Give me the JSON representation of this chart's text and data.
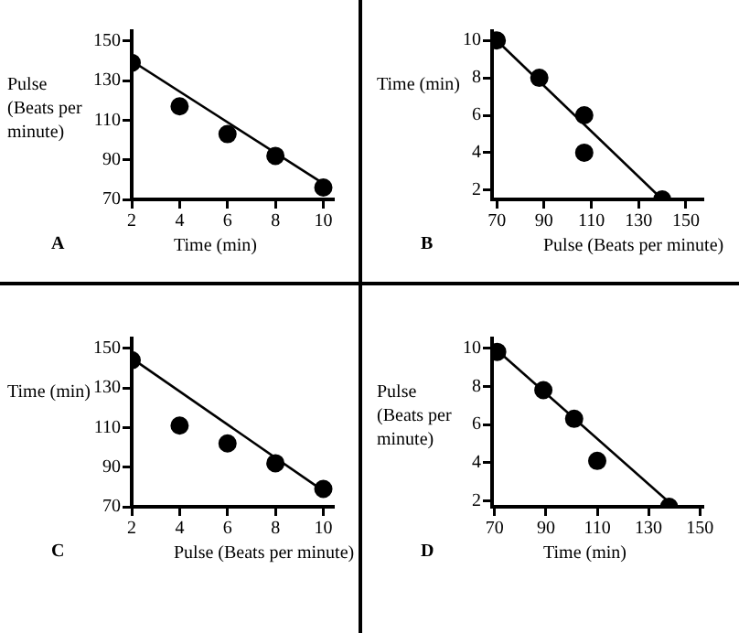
{
  "chart_data": [
    {
      "type": "scatter",
      "xlabel": "Time (min)",
      "ylabel": "Pulse (Beats per minute)",
      "annotations": [
        "A"
      ],
      "xlim": [
        2,
        10.4
      ],
      "ylim": [
        70,
        155
      ],
      "xticks": [
        2,
        4,
        6,
        8,
        10
      ],
      "yticks": [
        70,
        90,
        110,
        130,
        150
      ],
      "grid": false,
      "legend": false,
      "marker": "circle",
      "series": [
        {
          "color": "#000000",
          "x": [
            2,
            4,
            6,
            8,
            10
          ],
          "values": [
            139,
            117,
            103,
            92,
            76
          ]
        },
        {
          "type": "line",
          "marker": "none",
          "color": "#000000",
          "x": [
            2,
            10
          ],
          "values": [
            140,
            78
          ]
        }
      ]
    },
    {
      "type": "scatter",
      "xlabel": "Pulse (Beats per minute)",
      "ylabel": "Time (min)",
      "annotations": [
        "B"
      ],
      "xlim": [
        68,
        157
      ],
      "ylim": [
        1.5,
        10.5
      ],
      "xticks": [
        70,
        90,
        110,
        130,
        150
      ],
      "yticks": [
        2,
        4,
        6,
        8,
        10
      ],
      "grid": false,
      "legend": false,
      "marker": "circle",
      "series": [
        {
          "color": "#000000",
          "x": [
            70,
            88,
            107,
            107,
            140
          ],
          "values": [
            10,
            8,
            6,
            4,
            1.5
          ]
        },
        {
          "type": "line",
          "marker": "none",
          "color": "#000000",
          "x": [
            70,
            140
          ],
          "values": [
            10,
            1.5
          ]
        }
      ]
    },
    {
      "type": "scatter",
      "xlabel": "Pulse (Beats per minute)",
      "ylabel": "Time (min)",
      "annotations": [
        "C"
      ],
      "xlim": [
        2,
        10.4
      ],
      "ylim": [
        70,
        155
      ],
      "xticks": [
        2,
        4,
        6,
        8,
        10
      ],
      "yticks": [
        70,
        90,
        110,
        130,
        150
      ],
      "grid": false,
      "legend": false,
      "marker": "circle",
      "series": [
        {
          "color": "#000000",
          "x": [
            2,
            4,
            6,
            8,
            10
          ],
          "values": [
            144,
            111,
            102,
            92,
            79
          ]
        },
        {
          "type": "line",
          "marker": "none",
          "color": "#000000",
          "x": [
            2,
            10
          ],
          "values": [
            145,
            78
          ]
        }
      ]
    },
    {
      "type": "scatter",
      "xlabel": "Time (min)",
      "ylabel": "Pulse (Beats per minute)",
      "annotations": [
        "D"
      ],
      "xlim": [
        69,
        151
      ],
      "ylim": [
        1.7,
        10.5
      ],
      "xticks": [
        70,
        90,
        110,
        130,
        150
      ],
      "yticks": [
        2,
        4,
        6,
        8,
        10
      ],
      "grid": false,
      "legend": false,
      "marker": "circle",
      "series": [
        {
          "color": "#000000",
          "x": [
            71,
            89,
            101,
            110,
            138
          ],
          "values": [
            9.8,
            7.8,
            6.3,
            4.1,
            1.7
          ]
        },
        {
          "type": "line",
          "marker": "none",
          "color": "#000000",
          "x": [
            70,
            140
          ],
          "values": [
            10,
            1.7
          ]
        }
      ]
    }
  ]
}
